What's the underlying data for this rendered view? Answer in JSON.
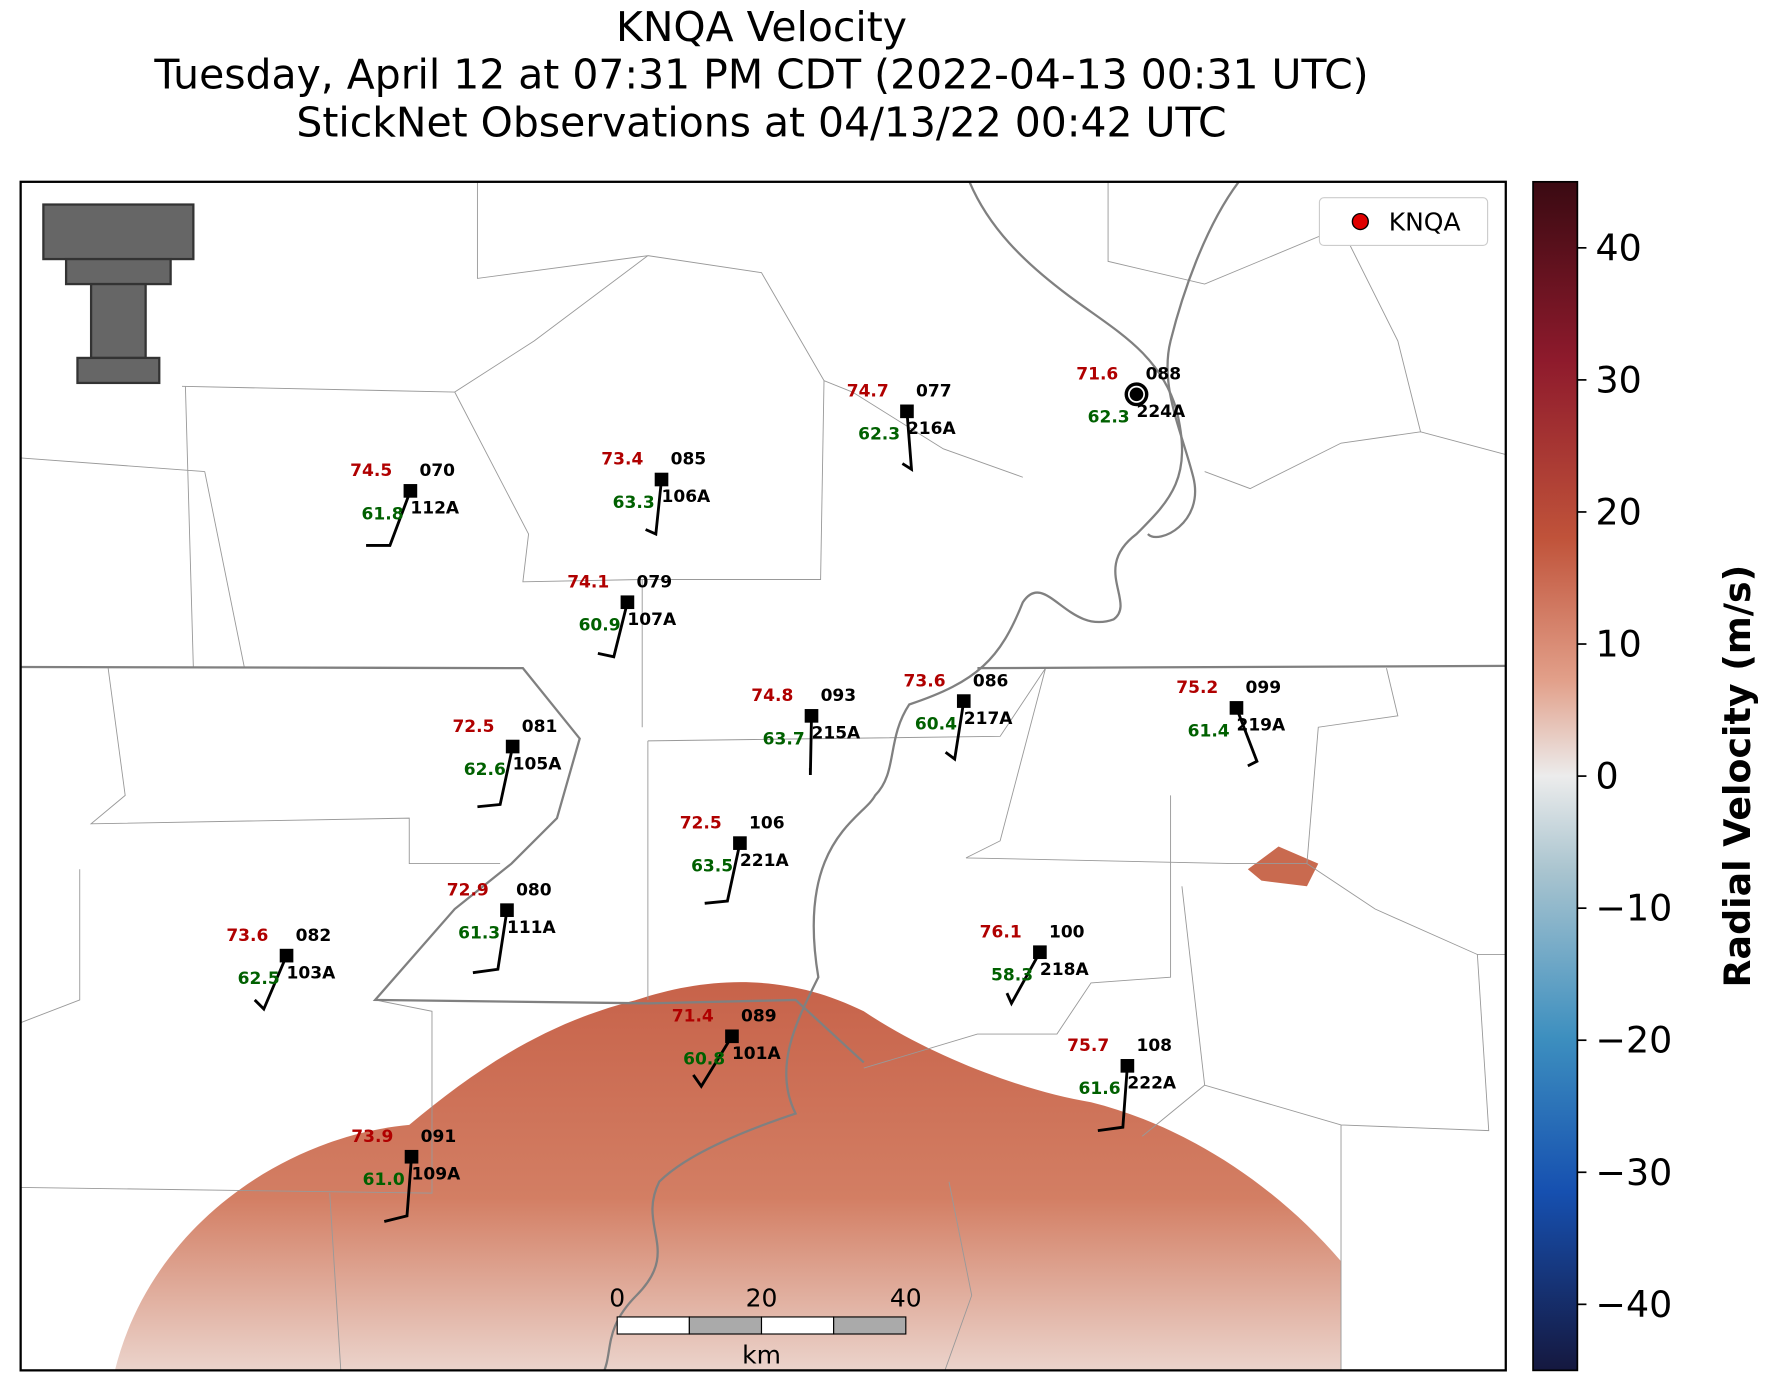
{
  "header": {
    "title_lines": [
      "KNQA Velocity",
      "Tuesday, April 12 at 07:31 PM CDT (2022-04-13 00:31 UTC)",
      "StickNet Observations at 04/13/22 00:42 UTC"
    ]
  },
  "map": {
    "legend": {
      "label": "KNQA",
      "color": "#e00000"
    },
    "stations": [
      {
        "id": "112A",
        "code": "070",
        "temperature": "74.5",
        "dewpoint": "61.8"
      },
      {
        "id": "106A",
        "code": "085",
        "temperature": "73.4",
        "dewpoint": "63.3"
      },
      {
        "id": "216A",
        "code": "077",
        "temperature": "74.7",
        "dewpoint": "62.3"
      },
      {
        "id": "224A",
        "code": "088",
        "temperature": "71.6",
        "dewpoint": "62.3"
      },
      {
        "id": "107A",
        "code": "079",
        "temperature": "74.1",
        "dewpoint": "60.9"
      },
      {
        "id": "105A",
        "code": "081",
        "temperature": "72.5",
        "dewpoint": "62.6"
      },
      {
        "id": "215A",
        "code": "093",
        "temperature": "74.8",
        "dewpoint": "63.7"
      },
      {
        "id": "217A",
        "code": "086",
        "temperature": "73.6",
        "dewpoint": "60.4"
      },
      {
        "id": "219A",
        "code": "099",
        "temperature": "75.2",
        "dewpoint": "61.4"
      },
      {
        "id": "221A",
        "code": "106",
        "temperature": "72.5",
        "dewpoint": "63.5"
      },
      {
        "id": "111A",
        "code": "080",
        "temperature": "72.9",
        "dewpoint": "61.3"
      },
      {
        "id": "103A",
        "code": "082",
        "temperature": "73.6",
        "dewpoint": "62.5"
      },
      {
        "id": "218A",
        "code": "100",
        "temperature": "76.1",
        "dewpoint": "58.3"
      },
      {
        "id": "101A",
        "code": "089",
        "temperature": "71.4",
        "dewpoint": "60.8"
      },
      {
        "id": "222A",
        "code": "108",
        "temperature": "75.7",
        "dewpoint": "61.6"
      },
      {
        "id": "109A",
        "code": "091",
        "temperature": "73.9",
        "dewpoint": "61.0"
      }
    ],
    "scale_bar": {
      "ticks": [
        0,
        20,
        40
      ],
      "unit": "km"
    }
  },
  "colorbar": {
    "label": "Radial Velocity (m/s)",
    "lim": [
      -45,
      45
    ],
    "ticks": [
      40,
      30,
      20,
      10,
      0,
      {
        "value": -10,
        "label": "−10"
      },
      {
        "value": -20,
        "label": "−20"
      },
      {
        "value": -30,
        "label": "−30"
      },
      {
        "value": -40,
        "label": "−40"
      }
    ]
  }
}
